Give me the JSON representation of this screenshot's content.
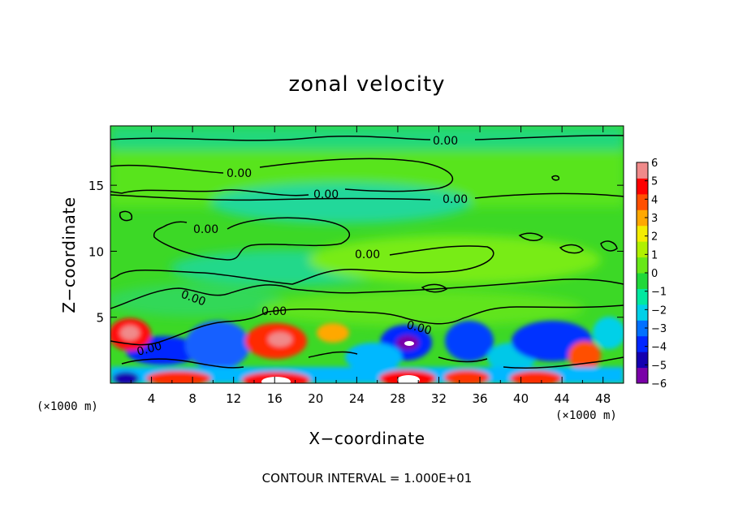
{
  "chart_data": {
    "type": "heatmap",
    "title": "zonal velocity",
    "xlabel": "X−coordinate",
    "ylabel": "Z−coordinate",
    "x_unit": "(×1000 m)",
    "x_unit_right": "(×1000 m)",
    "xlim": [
      0,
      50
    ],
    "ylim": [
      0,
      19.5
    ],
    "x_ticks": [
      "4",
      "8",
      "12",
      "16",
      "20",
      "24",
      "28",
      "32",
      "36",
      "40",
      "44",
      "48"
    ],
    "y_ticks": [
      "5",
      "10",
      "15"
    ],
    "colorbar_ticks": [
      "6",
      "5",
      "4",
      "3",
      "2",
      "1",
      "0",
      "−1",
      "−2",
      "−3",
      "−4",
      "−5",
      "−6"
    ],
    "colorbar_range": [
      -6,
      6
    ],
    "colors": [
      "#7a00a8",
      "#1400b0",
      "#0026ff",
      "#0070ff",
      "#00d0e8",
      "#00e8a0",
      "#20d83a",
      "#68e818",
      "#b0f000",
      "#f4ec00",
      "#ffa800",
      "#ff5000",
      "#ff0000",
      "#f08a8a"
    ],
    "contour_labels": [
      "0.00",
      "0.00",
      "0.00",
      "0.00",
      "0.00",
      "0.00",
      "0.00",
      "0.00",
      "0.00",
      "0.00"
    ],
    "footer": "CONTOUR INTERVAL = 1.000E+01",
    "grid": false
  }
}
